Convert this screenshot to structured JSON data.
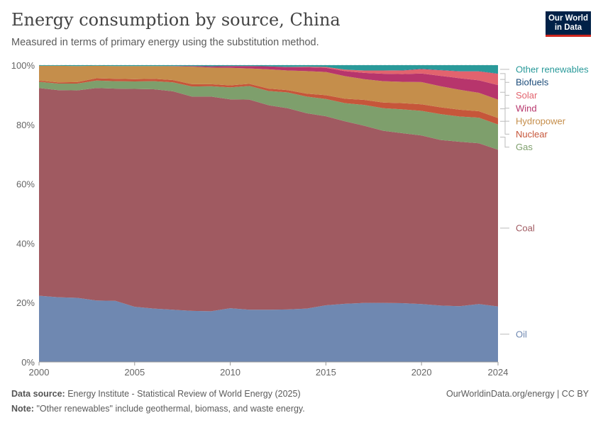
{
  "header": {
    "title": "Energy consumption by source, China",
    "subtitle": "Measured in terms of primary energy using the substitution method.",
    "logo_line1": "Our World",
    "logo_line2": "in Data"
  },
  "footer": {
    "source_label": "Data source:",
    "source_text": "Energy Institute - Statistical Review of World Energy (2025)",
    "credit": "OurWorldinData.org/energy | CC BY",
    "note_label": "Note:",
    "note_text": "\"Other renewables\" include geothermal, biomass, and waste energy."
  },
  "chart_data": {
    "type": "area",
    "stacked": true,
    "title": "Energy consumption by source, China",
    "ylim": [
      0,
      100
    ],
    "y_ticks": [
      "0%",
      "20%",
      "40%",
      "60%",
      "80%",
      "100%"
    ],
    "y_tick_values": [
      0,
      20,
      40,
      60,
      80,
      100
    ],
    "x_ticks": [
      2000,
      2005,
      2010,
      2015,
      2020,
      2024
    ],
    "grid": "horizontal dashed",
    "legend": "right, inline labels",
    "x": [
      2000,
      2001,
      2002,
      2003,
      2004,
      2005,
      2006,
      2007,
      2008,
      2009,
      2010,
      2011,
      2012,
      2013,
      2014,
      2015,
      2016,
      2017,
      2018,
      2019,
      2020,
      2021,
      2022,
      2023,
      2024
    ],
    "series": [
      {
        "name": "Oil",
        "color": "#6f88b1",
        "values": [
          22.3,
          21.8,
          21.6,
          20.7,
          20.6,
          18.6,
          18.0,
          17.6,
          17.2,
          17.1,
          18.1,
          17.6,
          17.6,
          17.7,
          18.0,
          19.1,
          19.6,
          19.9,
          19.9,
          19.8,
          19.5,
          19.0,
          18.8,
          19.5,
          18.7
        ]
      },
      {
        "name": "Coal",
        "color": "#a05a61",
        "values": [
          70.0,
          69.8,
          69.9,
          71.6,
          71.5,
          73.4,
          73.9,
          73.6,
          72.2,
          72.3,
          70.4,
          70.8,
          68.9,
          67.8,
          65.8,
          63.7,
          61.5,
          59.7,
          58.0,
          57.3,
          56.8,
          55.8,
          55.4,
          54.2,
          52.8
        ]
      },
      {
        "name": "Gas",
        "color": "#7e9f6c",
        "values": [
          2.1,
          2.2,
          2.3,
          2.5,
          2.5,
          2.5,
          2.7,
          3.0,
          3.4,
          3.5,
          4.0,
          4.6,
          4.8,
          5.3,
          5.6,
          5.8,
          6.1,
          7.0,
          7.6,
          8.0,
          8.3,
          8.7,
          8.5,
          8.6,
          8.5
        ]
      },
      {
        "name": "Nuclear",
        "color": "#c6563a",
        "values": [
          0.4,
          0.4,
          0.5,
          0.8,
          0.8,
          0.8,
          0.8,
          0.8,
          0.8,
          0.7,
          0.7,
          0.7,
          0.8,
          0.8,
          1.0,
          1.3,
          1.5,
          1.7,
          1.9,
          2.1,
          2.2,
          2.3,
          2.3,
          2.2,
          2.2
        ]
      },
      {
        "name": "Hydropower",
        "color": "#c58e4b",
        "values": [
          5.0,
          5.6,
          5.4,
          4.2,
          4.3,
          4.4,
          4.3,
          4.6,
          5.9,
          5.6,
          5.9,
          5.2,
          6.5,
          6.6,
          7.6,
          7.8,
          7.6,
          7.0,
          7.2,
          7.2,
          7.5,
          7.1,
          6.7,
          6.2,
          6.2
        ]
      },
      {
        "name": "Wind",
        "color": "#b7356c",
        "values": [
          0.0,
          0.0,
          0.0,
          0.0,
          0.0,
          0.0,
          0.0,
          0.1,
          0.2,
          0.4,
          0.6,
          0.8,
          1.0,
          1.1,
          1.3,
          1.4,
          1.7,
          2.1,
          2.5,
          2.6,
          2.9,
          3.5,
          3.9,
          4.2,
          4.9
        ]
      },
      {
        "name": "Solar",
        "color": "#e2636e",
        "values": [
          0.0,
          0.0,
          0.0,
          0.0,
          0.0,
          0.0,
          0.0,
          0.0,
          0.0,
          0.0,
          0.0,
          0.0,
          0.0,
          0.1,
          0.2,
          0.3,
          0.5,
          0.8,
          1.1,
          1.2,
          1.5,
          1.9,
          2.3,
          3.0,
          3.8
        ]
      },
      {
        "name": "Biofuels",
        "color": "#1c4c7a",
        "values": [
          0.0,
          0.0,
          0.0,
          0.0,
          0.0,
          0.0,
          0.0,
          0.0,
          0.0,
          0.0,
          0.0,
          0.0,
          0.0,
          0.0,
          0.0,
          0.0,
          0.0,
          0.0,
          0.0,
          0.1,
          0.1,
          0.1,
          0.1,
          0.1,
          0.1
        ]
      },
      {
        "name": "Other renewables",
        "color": "#2a9a9a",
        "values": [
          0.2,
          0.2,
          0.3,
          0.2,
          0.3,
          0.3,
          0.3,
          0.3,
          0.3,
          0.4,
          0.3,
          0.3,
          0.4,
          0.6,
          0.5,
          0.6,
          1.5,
          1.8,
          1.8,
          1.7,
          1.2,
          1.6,
          2.0,
          2.0,
          2.8
        ]
      }
    ]
  }
}
